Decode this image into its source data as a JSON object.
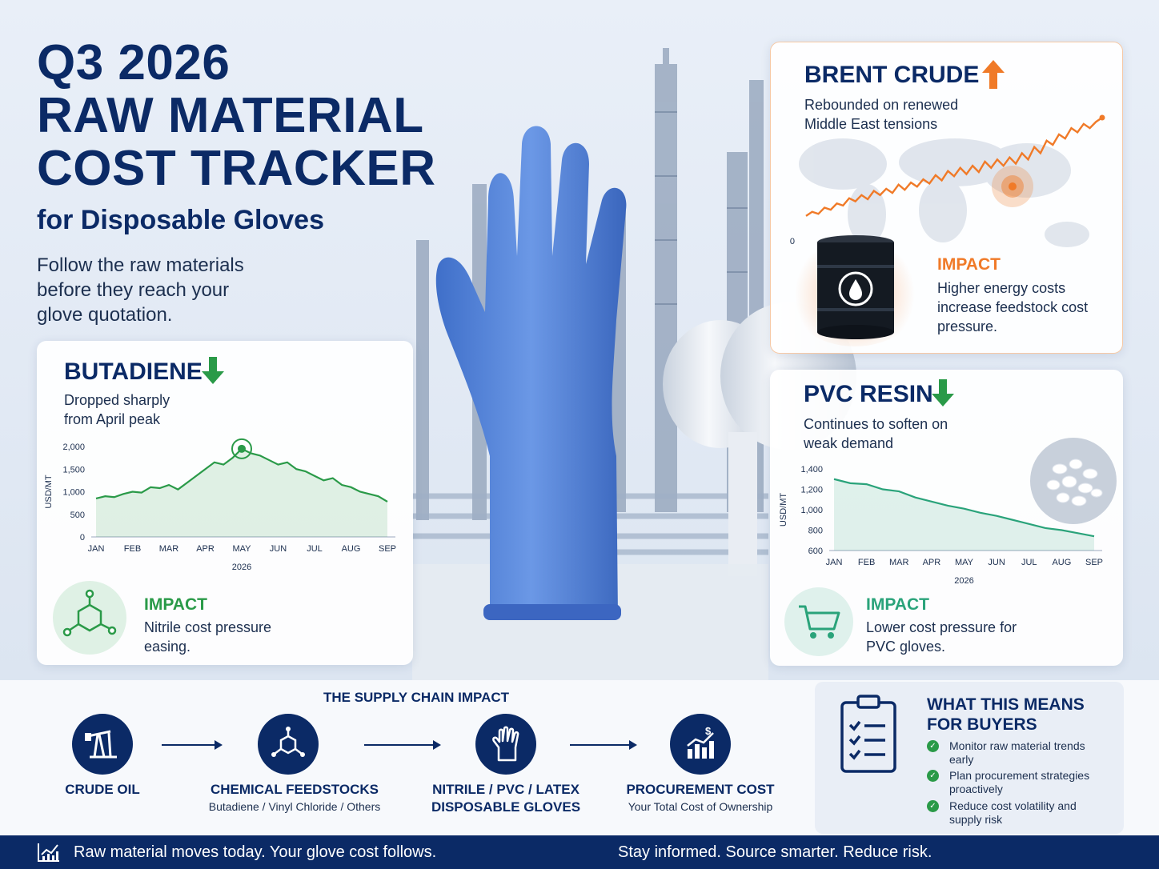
{
  "header": {
    "title_line1": "Q3 2026",
    "title_line2": "RAW MATERIAL",
    "title_line3": "COST TRACKER",
    "subtitle": "for Disposable Gloves",
    "tagline": "Follow the raw materials before they reach your glove quotation."
  },
  "colors": {
    "navy": "#0b2a66",
    "green": "#2a9a48",
    "orange": "#f07a28",
    "teal": "#2aa37a"
  },
  "butadiene": {
    "title": "BUTADIENE",
    "trend_icon": "arrow-down-icon",
    "description": "Dropped sharply from April peak",
    "impact_title": "IMPACT",
    "impact_text": "Nitrile cost pressure easing.",
    "impact_icon": "molecule-icon"
  },
  "brent": {
    "title": "BRENT CRUDE",
    "trend_icon": "arrow-up-icon",
    "description": "Rebounded on renewed Middle East tensions",
    "impact_title": "IMPACT",
    "impact_text": "Higher energy costs increase feedstock cost pressure.",
    "impact_icon": "oil-barrel-icon"
  },
  "pvc": {
    "title": "PVC RESIN",
    "trend_icon": "arrow-down-icon",
    "description": "Continues to soften on weak demand",
    "impact_title": "IMPACT",
    "impact_text": "Lower cost pressure for PVC gloves.",
    "impact_icon": "shopping-cart-icon"
  },
  "chart_data": [
    {
      "type": "area",
      "title": "BUTADIENE",
      "xlabel": "2026",
      "ylabel": "USD/MT",
      "categories": [
        "JAN",
        "FEB",
        "MAR",
        "APR",
        "MAY",
        "JUN",
        "JUL",
        "AUG",
        "SEP"
      ],
      "yticks": [
        "0",
        "500",
        "1,000",
        "1,500",
        "2,000"
      ],
      "ylim": [
        0,
        2000
      ],
      "x": [
        0,
        0.25,
        0.5,
        0.75,
        1,
        1.25,
        1.5,
        1.75,
        2,
        2.25,
        2.5,
        2.75,
        3,
        3.25,
        3.5,
        3.75,
        4,
        4.25,
        4.5,
        4.75,
        5,
        5.25,
        5.5,
        5.75,
        6,
        6.25,
        6.5,
        6.75,
        7,
        7.25,
        7.5,
        7.75,
        8
      ],
      "values": [
        850,
        900,
        880,
        950,
        1000,
        980,
        1100,
        1080,
        1150,
        1050,
        1200,
        1350,
        1500,
        1650,
        1600,
        1750,
        1950,
        1850,
        1800,
        1700,
        1600,
        1650,
        1500,
        1450,
        1350,
        1250,
        1300,
        1150,
        1100,
        1000,
        950,
        900,
        780
      ],
      "highlight_x": 4,
      "highlight_value": 1950,
      "series_color": "#2a9a48",
      "grid": false
    },
    {
      "type": "line",
      "title": "BRENT CRUDE",
      "x": [
        0,
        0.5,
        1,
        1.5,
        2,
        2.5,
        3,
        3.5,
        4,
        4.5,
        5,
        5.5,
        6,
        6.5,
        7,
        7.5,
        8,
        8.5,
        9,
        9.5,
        10,
        10.5,
        11,
        11.5,
        12,
        12.5,
        13,
        13.5,
        14,
        14.5,
        15,
        15.5,
        16,
        16.5,
        17,
        17.5,
        18,
        18.5,
        19,
        19.5,
        20,
        20.5,
        21,
        21.5,
        22,
        22.5,
        23,
        23.5,
        24
      ],
      "values": [
        10,
        14,
        12,
        18,
        16,
        22,
        20,
        27,
        24,
        30,
        26,
        34,
        30,
        36,
        32,
        40,
        35,
        42,
        38,
        45,
        41,
        49,
        44,
        53,
        48,
        56,
        50,
        58,
        52,
        62,
        56,
        64,
        58,
        66,
        60,
        70,
        64,
        76,
        70,
        82,
        78,
        88,
        84,
        94,
        90,
        98,
        94,
        100,
        104
      ],
      "yticks_visible": [
        "0"
      ],
      "series_color": "#f07a28",
      "grid": false
    },
    {
      "type": "area",
      "title": "PVC RESIN",
      "xlabel": "2026",
      "ylabel": "USD/MT",
      "categories": [
        "JAN",
        "FEB",
        "MAR",
        "APR",
        "MAY",
        "JUN",
        "JUL",
        "AUG",
        "SEP"
      ],
      "yticks": [
        "600",
        "800",
        "1,000",
        "1,200",
        "1,400"
      ],
      "ylim": [
        600,
        1400
      ],
      "x": [
        0,
        0.5,
        1,
        1.5,
        2,
        2.5,
        3,
        3.5,
        4,
        4.5,
        5,
        5.5,
        6,
        6.5,
        7,
        7.5,
        8
      ],
      "values": [
        1300,
        1260,
        1250,
        1200,
        1180,
        1120,
        1080,
        1040,
        1010,
        970,
        940,
        900,
        860,
        820,
        800,
        770,
        740
      ],
      "series_color": "#2aa37a",
      "grid": false
    }
  ],
  "supply_chain": {
    "title": "THE SUPPLY CHAIN IMPACT",
    "steps": [
      {
        "label": "CRUDE OIL",
        "sub": "",
        "icon": "oil-pump-icon"
      },
      {
        "label": "CHEMICAL FEEDSTOCKS",
        "sub": "Butadiene / Vinyl Chloride / Others",
        "icon": "molecule-icon"
      },
      {
        "label": "NITRILE / PVC / LATEX DISPOSABLE GLOVES",
        "sub": "",
        "icon": "glove-icon"
      },
      {
        "label": "PROCUREMENT COST",
        "sub": "Your Total Cost of Ownership",
        "icon": "cost-chart-icon"
      }
    ]
  },
  "buyers": {
    "title": "WHAT THIS MEANS FOR BUYERS",
    "icon": "clipboard-checklist-icon",
    "items": [
      "Monitor raw material trends early",
      "Plan procurement strategies proactively",
      "Reduce cost volatility and supply risk"
    ]
  },
  "footer": {
    "left": "Raw material moves today. Your glove cost follows.",
    "right": "Stay informed. Source smarter. Reduce risk.",
    "icon": "trend-chart-icon"
  }
}
